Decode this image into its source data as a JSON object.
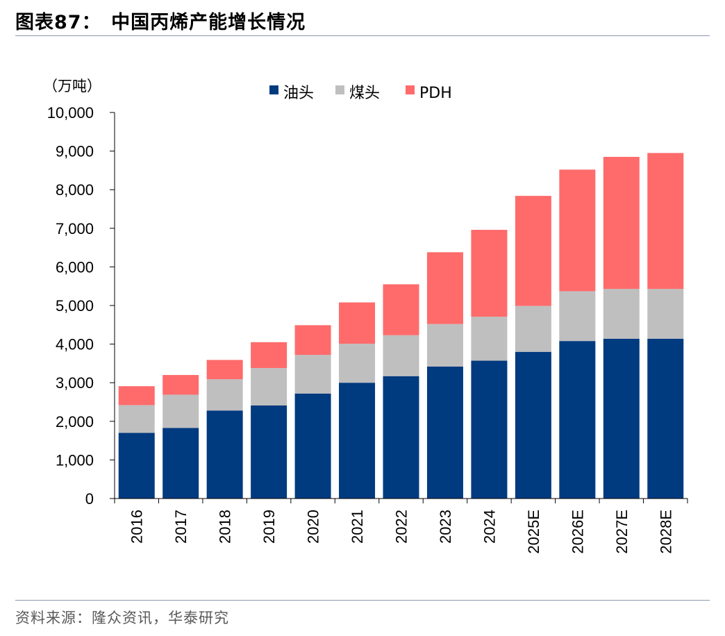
{
  "header": {
    "title": "图表87：　中国丙烯产能增长情况"
  },
  "footer": {
    "source": "资料来源：隆众资讯，华泰研究"
  },
  "chart_data": {
    "type": "bar",
    "stacked": true,
    "title": "",
    "xlabel": "",
    "ylabel": "",
    "unit_label": "（万吨）",
    "ylim": [
      0,
      10000
    ],
    "yticks": [
      0,
      1000,
      2000,
      3000,
      4000,
      5000,
      6000,
      7000,
      8000,
      9000,
      10000
    ],
    "ytick_labels": [
      "0",
      "1,000",
      "2,000",
      "3,000",
      "4,000",
      "5,000",
      "6,000",
      "7,000",
      "8,000",
      "9,000",
      "10,000"
    ],
    "grid": false,
    "legend_position": "top-center",
    "categories": [
      "2016",
      "2017",
      "2018",
      "2019",
      "2020",
      "2021",
      "2022",
      "2023",
      "2024",
      "2025E",
      "2026E",
      "2027E",
      "2028E"
    ],
    "series": [
      {
        "name": "油头",
        "color": "#003A7F",
        "values": [
          1700,
          1830,
          2280,
          2410,
          2720,
          3000,
          3170,
          3420,
          3570,
          3800,
          4080,
          4140,
          4140
        ]
      },
      {
        "name": "煤头",
        "color": "#BFBFBF",
        "values": [
          720,
          860,
          810,
          970,
          1000,
          1010,
          1060,
          1100,
          1140,
          1190,
          1290,
          1290,
          1290
        ]
      },
      {
        "name": "PDH",
        "color": "#FF6B6B",
        "values": [
          490,
          510,
          500,
          670,
          770,
          1070,
          1320,
          1860,
          2250,
          2850,
          3150,
          3420,
          3520
        ]
      }
    ]
  }
}
